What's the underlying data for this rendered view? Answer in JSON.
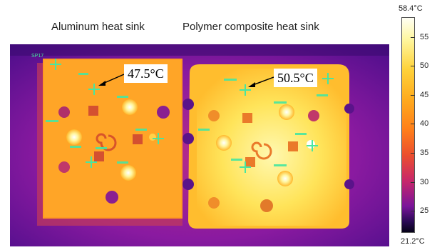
{
  "captions": {
    "aluminum": "Aluminum heat sink",
    "polymer": "Polymer composite heat sink"
  },
  "callouts": {
    "aluminum_temp": "47.5°C",
    "polymer_temp": "50.5°C"
  },
  "spot_marker": {
    "label": "SP17"
  },
  "color_scale": {
    "max_label": "58.4°C",
    "min_label": "21.2°C",
    "max_value": 58.4,
    "min_value": 21.2,
    "ticks": [
      "55",
      "50",
      "45",
      "40",
      "35",
      "30",
      "25"
    ],
    "tick_values": [
      55,
      50,
      45,
      40,
      35,
      30,
      25
    ]
  },
  "colors": {
    "hot": "#fff7a0",
    "warm": "#ffa31a",
    "background_cold": "#7a149a",
    "marker": "#48e6a0"
  }
}
